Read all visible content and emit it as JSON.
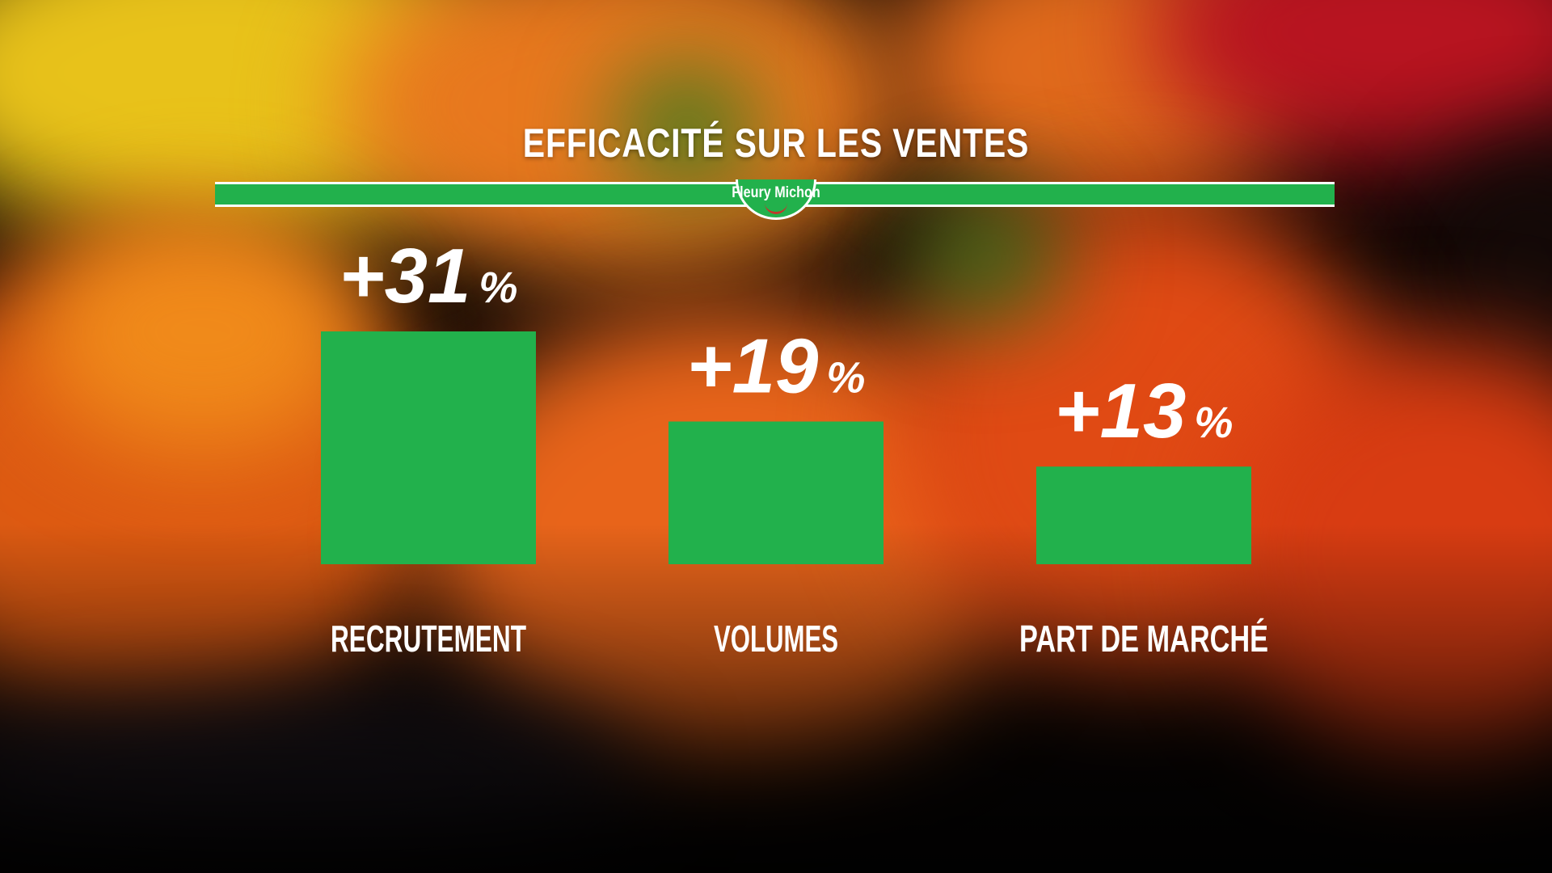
{
  "brand": {
    "logo_text": "Fleury Michon",
    "accent": "#22b14c"
  },
  "chart_data": {
    "type": "bar",
    "title": "EFFICACITÉ SUR LES VENTES",
    "categories": [
      "RECRUTEMENT",
      "VOLUMES",
      "PART DE MARCHÉ"
    ],
    "values": [
      31,
      19,
      13
    ],
    "value_labels": [
      "+31",
      "+19",
      "+13"
    ],
    "unit": "%",
    "bar_color": "#22b14c",
    "ylim": [
      0,
      31
    ],
    "grid": false,
    "legend": "none"
  }
}
